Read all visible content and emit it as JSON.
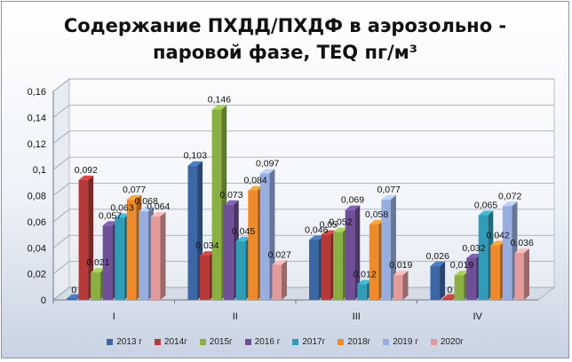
{
  "title": {
    "line1": "Содержание ПХДД/ПХДФ в аэрозольно -",
    "line2": "паровой фазе, TEQ  пг/м³"
  },
  "chart_data": {
    "type": "bar",
    "title": "Содержание ПХДД/ПХДФ в аэрозольно - паровой фазе, TEQ  пг/м³",
    "categories": [
      "I",
      "II",
      "III",
      "IV"
    ],
    "ylim": [
      0,
      0.16
    ],
    "yticks": [
      "0",
      "0,02",
      "0,04",
      "0,06",
      "0,08",
      "0,1",
      "0,12",
      "0,14",
      "0,16"
    ],
    "ytick_values": [
      0,
      0.02,
      0.04,
      0.06,
      0.08,
      0.1,
      0.12,
      0.14,
      0.16
    ],
    "grid": true,
    "legend_position": "bottom",
    "series": [
      {
        "name": "2013 г",
        "color": "#3c67a6",
        "values": [
          0,
          0.103,
          0.046,
          0.026
        ],
        "labels": [
          "0",
          "0,103",
          "0,046",
          "0,026"
        ]
      },
      {
        "name": "2014г",
        "color": "#b53a37",
        "values": [
          0.092,
          0.034,
          0.05,
          0
        ],
        "labels": [
          "0,092",
          "0,034",
          "0,05",
          "0"
        ]
      },
      {
        "name": "2015г",
        "color": "#8ab043",
        "values": [
          0.021,
          0.146,
          0.052,
          0.019
        ],
        "labels": [
          "0,021",
          "0,146",
          "0,052",
          "0,019"
        ]
      },
      {
        "name": "2016 г",
        "color": "#6f4f97",
        "values": [
          0.057,
          0.073,
          0.069,
          0.032
        ],
        "labels": [
          "0,057",
          "0,073",
          "0,069",
          "0,032"
        ]
      },
      {
        "name": "2017г",
        "color": "#2f9cb8",
        "values": [
          0.063,
          0.045,
          0.012,
          0.065
        ],
        "labels": [
          "0,063",
          "0,045",
          "0,012",
          "0,065"
        ]
      },
      {
        "name": "2018г",
        "color": "#ef8a2a",
        "values": [
          0.077,
          0.084,
          0.058,
          0.042
        ],
        "labels": [
          "0,077",
          "0,084",
          "0,058",
          "0,042"
        ]
      },
      {
        "name": "2019 г",
        "color": "#98aee0",
        "values": [
          0.068,
          0.097,
          0.077,
          0.072
        ],
        "labels": [
          "0,068",
          "0,097",
          "0,077",
          "0,072"
        ]
      },
      {
        "name": "2020г",
        "color": "#e29a9a",
        "values": [
          0.064,
          0.027,
          0.019,
          0.036
        ],
        "labels": [
          "0,064",
          "0,027",
          "0,019",
          "0,036"
        ]
      }
    ]
  }
}
